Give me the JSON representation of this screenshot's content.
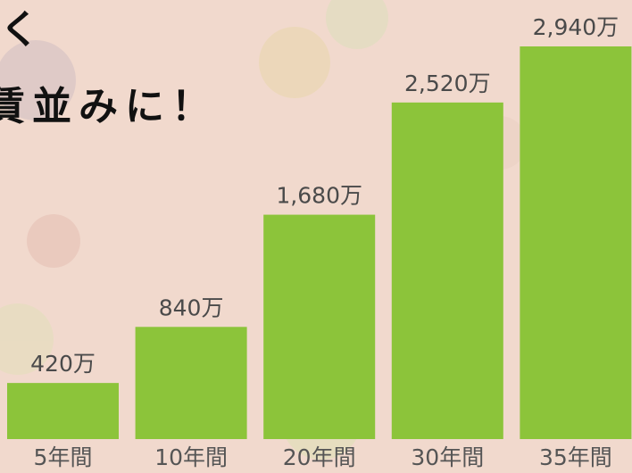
{
  "chart_data": {
    "type": "bar",
    "annotations": [
      "く",
      "賃並みに！"
    ],
    "categories": [
      "5年間",
      "10年間",
      "20年間",
      "30年間",
      "35年間"
    ],
    "values": [
      420,
      840,
      1680,
      2520,
      2940
    ],
    "value_labels": [
      "420万",
      "840万",
      "1,680万",
      "2,520万",
      "2,940万"
    ],
    "color": "#8cc43a"
  }
}
